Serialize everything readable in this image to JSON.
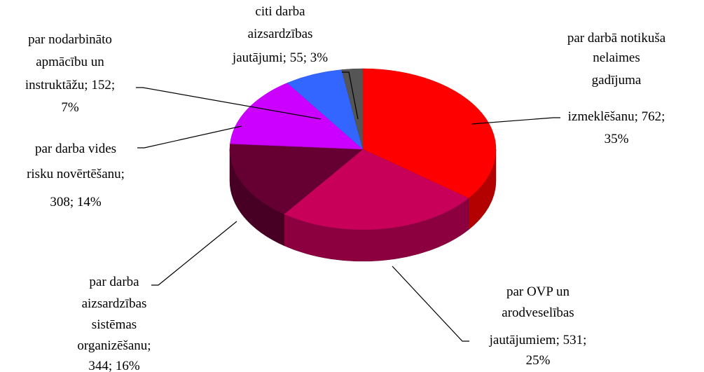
{
  "chart_data": {
    "type": "pie3d",
    "values": [
      762,
      531,
      344,
      308,
      152,
      55
    ],
    "labels": [
      "par darbā notikuša nelaimes gadījuma izmeklēšanu; 762; 35%",
      "par OVP un arodveselības jautājumiem; 531; 25%",
      "par darba aizsardzības sistēmas organizēšanu; 344; 16%",
      "par darba vides risku novērtēšanu; 308; 14%",
      "par nodarbināto apmācību un instruktāžu; 152; 7%",
      "citi darba aizsardzības jautājumi; 55; 3%"
    ],
    "colors": [
      "#ff0000",
      "#c8005a",
      "#660033",
      "#cc00ff",
      "#3366ff",
      "#555555"
    ]
  }
}
